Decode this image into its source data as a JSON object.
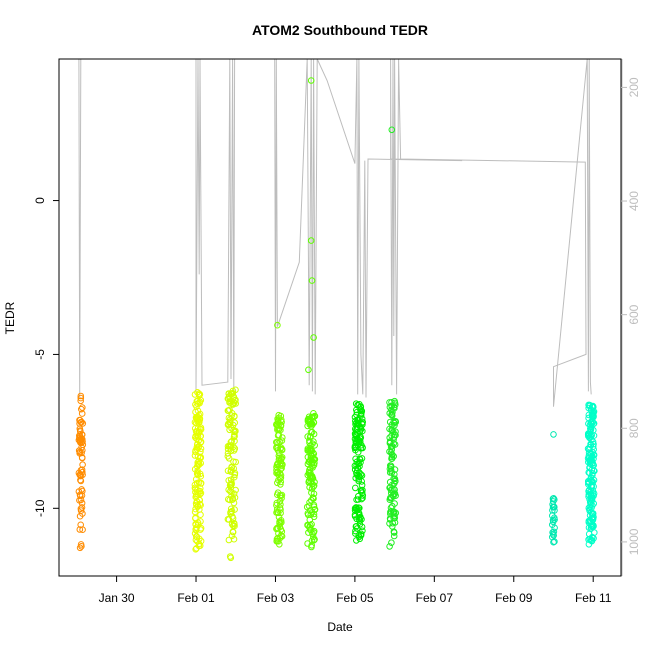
{
  "chart_data": {
    "type": "scatter",
    "title": "ATOM2 Southbound TEDR",
    "xlabel": "Date",
    "ylabel": "TEDR",
    "x_range_days": [
      -1.45,
      12.7
    ],
    "ylim": [
      -12.2,
      4.6
    ],
    "x_ticks": [
      {
        "label": "Jan 30",
        "day": 0
      },
      {
        "label": "Feb 01",
        "day": 2
      },
      {
        "label": "Feb 03",
        "day": 4
      },
      {
        "label": "Feb 05",
        "day": 6
      },
      {
        "label": "Feb 07",
        "day": 8
      },
      {
        "label": "Feb 09",
        "day": 10
      },
      {
        "label": "Feb 11",
        "day": 12
      }
    ],
    "y_ticks": [
      {
        "label": "-10",
        "value": -10
      },
      {
        "label": "-5",
        "value": -5
      },
      {
        "label": "0",
        "value": 0
      }
    ],
    "y2_axis": {
      "label": "",
      "range": [
        150,
        1060
      ],
      "inverted": true,
      "ticks": [
        {
          "label": "200",
          "value": 200
        },
        {
          "label": "400",
          "value": 400
        },
        {
          "label": "600",
          "value": 600
        },
        {
          "label": "800",
          "value": 800
        },
        {
          "label": "1000",
          "value": 1000
        }
      ]
    },
    "grid": false,
    "legend": "none",
    "profiles": [
      {
        "center": -0.9,
        "color": "#ff8c00",
        "count": 70,
        "low": -11.4,
        "high": -6.4,
        "spread": 0.05,
        "points": [
          {
            "x": -0.9,
            "y": -6.35
          }
        ]
      },
      {
        "center": 2.05,
        "color": "#e5ff00",
        "count": 140,
        "low": -11.5,
        "high": -6.2,
        "spread": 0.08,
        "points": []
      },
      {
        "center": 2.9,
        "color": "#d0ff00",
        "count": 120,
        "low": -11.7,
        "high": -6.1,
        "spread": 0.1,
        "points": []
      },
      {
        "center": 4.1,
        "color": "#7fff00",
        "count": 110,
        "low": -11.2,
        "high": -6.9,
        "spread": 0.08,
        "points": [
          {
            "x": 4.05,
            "y": -4.05
          }
        ]
      },
      {
        "center": 4.9,
        "color": "#5fff00",
        "count": 130,
        "low": -11.3,
        "high": -6.9,
        "spread": 0.1,
        "points": [
          {
            "x": 4.83,
            "y": -5.5
          },
          {
            "x": 4.9,
            "y": 3.9
          },
          {
            "x": 4.9,
            "y": -1.3
          },
          {
            "x": 4.92,
            "y": -2.6
          },
          {
            "x": 4.96,
            "y": -4.45
          }
        ]
      },
      {
        "center": 6.1,
        "color": "#00ee00",
        "count": 140,
        "low": -11.2,
        "high": -6.6,
        "spread": 0.1,
        "points": []
      },
      {
        "center": 6.95,
        "color": "#22ee22",
        "count": 110,
        "low": -11.3,
        "high": -6.5,
        "spread": 0.08,
        "points": [
          {
            "x": 6.93,
            "y": 2.3
          }
        ]
      },
      {
        "center": 11.0,
        "color": "#00e8b0",
        "count": 25,
        "low": -11.2,
        "high": -9.6,
        "spread": 0.03,
        "points": [
          {
            "x": 11.0,
            "y": -7.6
          }
        ]
      },
      {
        "center": 11.95,
        "color": "#00ffc8",
        "count": 170,
        "low": -11.2,
        "high": -6.6,
        "spread": 0.08,
        "points": []
      }
    ],
    "track": {
      "color": "#bdbdbd",
      "points": [
        [
          -0.95,
          4.6
        ],
        [
          -0.93,
          -6.4
        ],
        [
          -0.9,
          4.6
        ],
        [
          2.0,
          4.6
        ],
        [
          2.0,
          -6.2
        ],
        [
          2.05,
          4.6
        ],
        [
          2.08,
          -2.4
        ],
        [
          2.1,
          4.6
        ],
        [
          2.15,
          -6.0
        ],
        [
          2.8,
          -5.9
        ],
        [
          2.85,
          4.6
        ],
        [
          2.88,
          -5.8
        ],
        [
          2.92,
          4.6
        ],
        [
          2.95,
          -6.2
        ],
        [
          2.97,
          4.6
        ],
        [
          3.98,
          4.6
        ],
        [
          4.0,
          -6.2
        ],
        [
          4.02,
          4.6
        ],
        [
          4.05,
          -4.1
        ],
        [
          4.6,
          -2.0
        ],
        [
          4.8,
          4.6
        ],
        [
          4.85,
          -6.0
        ],
        [
          4.9,
          4.6
        ],
        [
          4.93,
          -6.2
        ],
        [
          4.96,
          4.6
        ],
        [
          5.0,
          -6.3
        ],
        [
          5.05,
          4.6
        ],
        [
          5.3,
          3.9
        ],
        [
          6.0,
          1.2
        ],
        [
          6.05,
          4.6
        ],
        [
          6.07,
          -6.3
        ],
        [
          6.1,
          4.6
        ],
        [
          6.15,
          -5.0
        ],
        [
          6.2,
          -6.3
        ],
        [
          6.25,
          1.3
        ],
        [
          6.28,
          -6.4
        ],
        [
          6.33,
          1.35
        ],
        [
          8.7,
          1.3
        ],
        [
          6.9,
          1.35
        ],
        [
          6.9,
          4.6
        ],
        [
          6.93,
          -6.0
        ],
        [
          6.96,
          4.6
        ],
        [
          6.98,
          -4.4
        ],
        [
          7.0,
          4.6
        ],
        [
          7.05,
          -6.3
        ],
        [
          7.1,
          4.6
        ],
        [
          7.15,
          1.35
        ],
        [
          11.8,
          1.25
        ],
        [
          11.82,
          -5.0
        ],
        [
          11.0,
          -5.4
        ],
        [
          11.0,
          -6.7
        ],
        [
          11.85,
          4.6
        ],
        [
          11.88,
          -6.2
        ],
        [
          11.9,
          4.6
        ],
        [
          11.93,
          -5.9
        ],
        [
          11.95,
          -6.3
        ]
      ]
    }
  }
}
